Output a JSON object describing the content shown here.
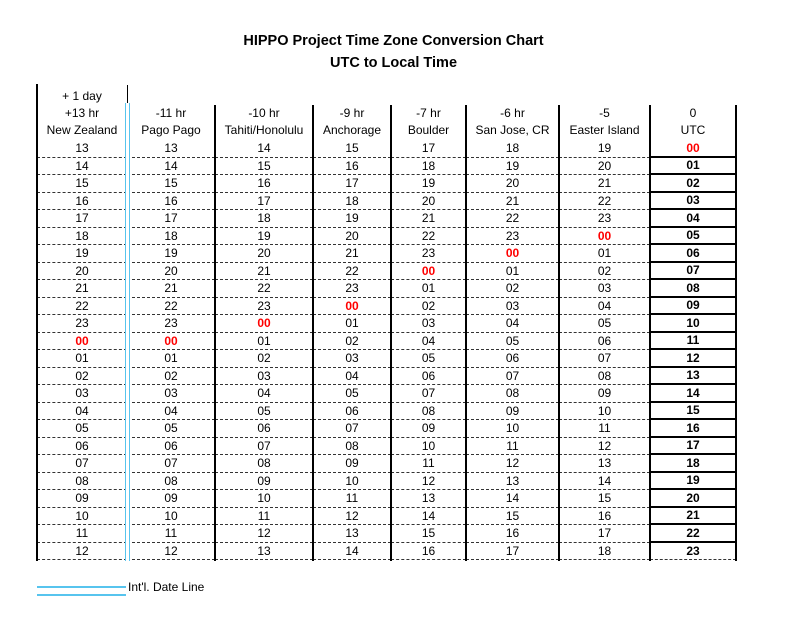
{
  "chart_data": {
    "type": "table",
    "title": "HIPPO Project Time Zone Conversion Chart",
    "subtitle": "UTC to Local Time",
    "plus_one_day_label": "+ 1 day",
    "legend": {
      "label": "Int'l. Date Line"
    },
    "colors": {
      "date_line_blue": "#57C4EE",
      "midnight_red": "#FF0000",
      "grid_black": "#000000",
      "dashed_gray": "#333333"
    },
    "columns": [
      {
        "offset": "+13 hr",
        "name": "New Zealand",
        "bold": false,
        "red_index": 11,
        "values": [
          "13",
          "14",
          "15",
          "16",
          "17",
          "18",
          "19",
          "20",
          "21",
          "22",
          "23",
          "00",
          "01",
          "02",
          "03",
          "04",
          "05",
          "06",
          "07",
          "08",
          "09",
          "10",
          "11",
          "12"
        ]
      },
      {
        "offset": "-11 hr",
        "name": "Pago Pago",
        "bold": false,
        "red_index": 11,
        "values": [
          "13",
          "14",
          "15",
          "16",
          "17",
          "18",
          "19",
          "20",
          "21",
          "22",
          "23",
          "00",
          "01",
          "02",
          "03",
          "04",
          "05",
          "06",
          "07",
          "08",
          "09",
          "10",
          "11",
          "12"
        ]
      },
      {
        "offset": "-10 hr",
        "name": "Tahiti/Honolulu",
        "bold": false,
        "red_index": 10,
        "values": [
          "14",
          "15",
          "16",
          "17",
          "18",
          "19",
          "20",
          "21",
          "22",
          "23",
          "00",
          "01",
          "02",
          "03",
          "04",
          "05",
          "06",
          "07",
          "08",
          "09",
          "10",
          "11",
          "12",
          "13"
        ]
      },
      {
        "offset": "-9 hr",
        "name": "Anchorage",
        "bold": false,
        "red_index": 9,
        "values": [
          "15",
          "16",
          "17",
          "18",
          "19",
          "20",
          "21",
          "22",
          "23",
          "00",
          "01",
          "02",
          "03",
          "04",
          "05",
          "06",
          "07",
          "08",
          "09",
          "10",
          "11",
          "12",
          "13",
          "14"
        ]
      },
      {
        "offset": "-7 hr",
        "name": "Boulder",
        "bold": false,
        "red_index": 7,
        "values": [
          "17",
          "18",
          "19",
          "20",
          "21",
          "22",
          "23",
          "00",
          "01",
          "02",
          "03",
          "04",
          "05",
          "06",
          "07",
          "08",
          "09",
          "10",
          "11",
          "12",
          "13",
          "14",
          "15",
          "16"
        ]
      },
      {
        "offset": "-6 hr",
        "name": "San Jose, CR",
        "bold": false,
        "red_index": 6,
        "values": [
          "18",
          "19",
          "20",
          "21",
          "22",
          "23",
          "00",
          "01",
          "02",
          "03",
          "04",
          "05",
          "06",
          "07",
          "08",
          "09",
          "10",
          "11",
          "12",
          "13",
          "14",
          "15",
          "16",
          "17"
        ]
      },
      {
        "offset": "-5",
        "name": "Easter Island",
        "bold": false,
        "red_index": 5,
        "values": [
          "19",
          "20",
          "21",
          "22",
          "23",
          "00",
          "01",
          "02",
          "03",
          "04",
          "05",
          "06",
          "07",
          "08",
          "09",
          "10",
          "11",
          "12",
          "13",
          "14",
          "15",
          "16",
          "17",
          "18"
        ]
      },
      {
        "offset": "0",
        "name": "UTC",
        "bold": true,
        "red_index": 0,
        "values": [
          "00",
          "01",
          "02",
          "03",
          "04",
          "05",
          "06",
          "07",
          "08",
          "09",
          "10",
          "11",
          "12",
          "13",
          "14",
          "15",
          "16",
          "17",
          "18",
          "19",
          "20",
          "21",
          "22",
          "23"
        ]
      }
    ]
  }
}
